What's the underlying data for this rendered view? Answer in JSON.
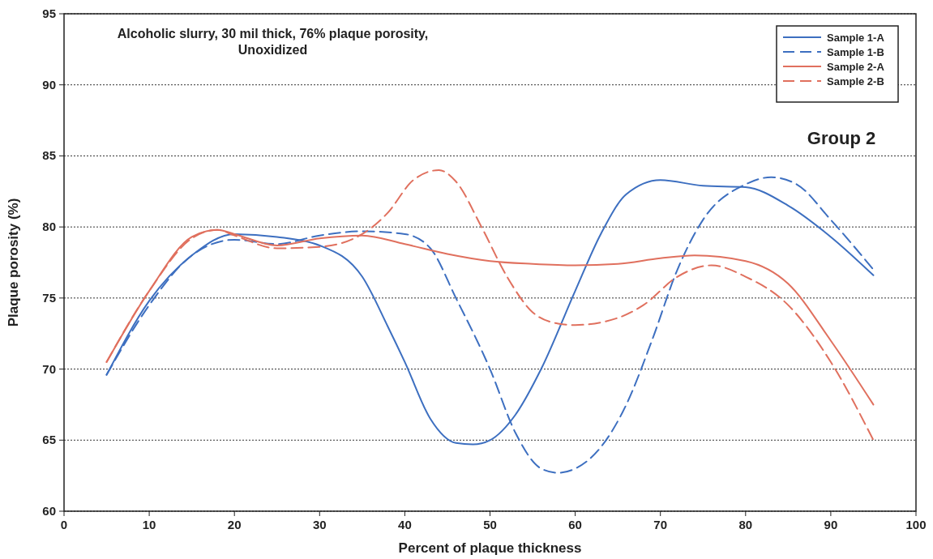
{
  "chart_data": {
    "type": "line",
    "title": "Alcoholic slurry, 30 mil thick, 76% plaque porosity, Unoxidized",
    "xlabel": "Percent of plaque thickness",
    "ylabel": "Plaque porosity (%)",
    "annotations": [
      "Group 2"
    ],
    "xlim": [
      0,
      100
    ],
    "xticks": [
      0,
      10,
      20,
      30,
      40,
      50,
      60,
      70,
      80,
      90,
      100
    ],
    "ylim": [
      60,
      95
    ],
    "yticks": [
      60,
      65,
      70,
      75,
      80,
      85,
      90,
      95
    ],
    "grid": "y",
    "legend": "top right",
    "marker": "none",
    "series": [
      {
        "name": "Sample 1-A",
        "color": "#3d6fc0",
        "line_style": "solid",
        "x": [
          5,
          10,
          15,
          20,
          25,
          30,
          35,
          38,
          40,
          43,
          46,
          48,
          50,
          53,
          56,
          60,
          63,
          66,
          70,
          75,
          80,
          85,
          90,
          95
        ],
        "values": [
          69.6,
          74.8,
          78,
          79.5,
          79.3,
          78.7,
          76.5,
          73,
          70.5,
          66.5,
          64.8,
          64.7,
          65,
          66.8,
          70,
          75.5,
          79.5,
          82.3,
          83.3,
          82.9,
          82.8,
          81.5,
          79.3,
          76.6
        ]
      },
      {
        "name": "Sample 1-B",
        "color": "#3d6fc0",
        "line_style": "dashed",
        "x": [
          5,
          10,
          15,
          20,
          25,
          30,
          35,
          40,
          43,
          46,
          50,
          53,
          56,
          58,
          60,
          63,
          66,
          69,
          72,
          75,
          80,
          83,
          86,
          90,
          95
        ],
        "values": [
          69.6,
          74.5,
          78,
          79.1,
          78.8,
          79.4,
          79.7,
          79.5,
          78.5,
          75,
          70,
          65.5,
          63,
          62.7,
          63,
          64.5,
          67.5,
          72,
          77,
          80.5,
          83,
          83.5,
          83,
          80.5,
          77
        ]
      },
      {
        "name": "Sample 2-A",
        "color": "#e0705e",
        "line_style": "solid",
        "x": [
          5,
          10,
          15,
          18,
          20,
          25,
          30,
          35,
          40,
          45,
          50,
          55,
          60,
          65,
          70,
          74,
          80,
          85,
          90,
          95
        ],
        "values": [
          70.5,
          75.5,
          79.3,
          79.8,
          79.5,
          78.7,
          79.2,
          79.4,
          78.8,
          78.1,
          77.6,
          77.4,
          77.3,
          77.4,
          77.8,
          78,
          77.6,
          76,
          72,
          67.5
        ]
      },
      {
        "name": "Sample 2-B",
        "color": "#e0705e",
        "line_style": "dashed",
        "x": [
          5,
          10,
          15,
          18,
          20,
          25,
          30,
          35,
          38,
          41,
          44,
          46,
          49,
          52,
          55,
          58,
          60,
          65,
          68,
          72,
          76,
          80,
          85,
          90,
          95
        ],
        "values": [
          70.5,
          75.5,
          79.2,
          79.8,
          79.4,
          78.5,
          78.6,
          79.5,
          81,
          83.3,
          84,
          83.2,
          80,
          76.5,
          74,
          73.2,
          73.1,
          73.6,
          74.5,
          76.5,
          77.3,
          76.5,
          74.5,
          70.5,
          65
        ]
      }
    ]
  }
}
